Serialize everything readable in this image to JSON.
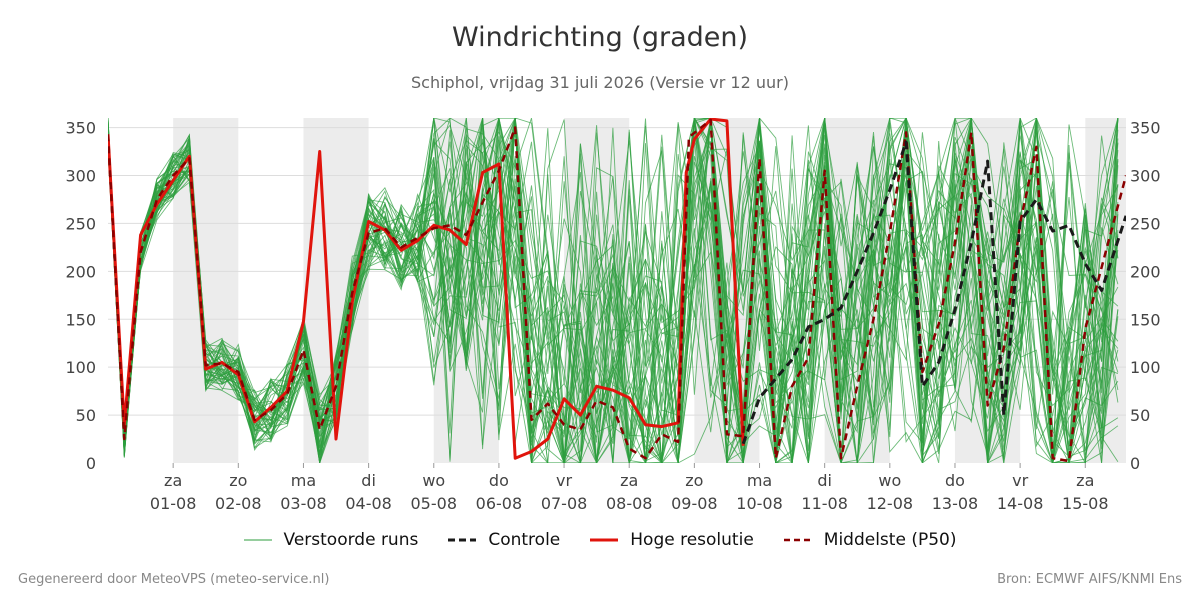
{
  "header": {
    "title": "Windrichting (graden)",
    "subtitle": "Schiphol, vrijdag 31 juli 2026 (Versie vr 12 uur)"
  },
  "footer": {
    "left": "Gegenereerd door MeteoVPS (meteo-service.nl)",
    "right": "Bron: ECMWF AIFS/KNMI Ens"
  },
  "colors": {
    "ensemble": "#2e9e3e",
    "control": "#1a1a1a",
    "high_res": "#e0140c",
    "median": "#8b0000",
    "weekend_shade": "#ececec",
    "grid": "#dddddd"
  },
  "chart_data": {
    "type": "line",
    "title": "Windrichting (graden)",
    "ylim": [
      0,
      360
    ],
    "yticks": [
      0,
      50,
      100,
      150,
      200,
      250,
      300,
      350
    ],
    "grid": true,
    "legend_position": "bottom",
    "x_range": [
      "2026-07-31",
      "2026-08-15 15:00"
    ],
    "x_ticks": [
      {
        "date": "2026-08-01",
        "day": "za",
        "label": "01-08"
      },
      {
        "date": "2026-08-02",
        "day": "zo",
        "label": "02-08"
      },
      {
        "date": "2026-08-03",
        "day": "ma",
        "label": "03-08"
      },
      {
        "date": "2026-08-04",
        "day": "di",
        "label": "04-08"
      },
      {
        "date": "2026-08-05",
        "day": "wo",
        "label": "05-08"
      },
      {
        "date": "2026-08-06",
        "day": "do",
        "label": "06-08"
      },
      {
        "date": "2026-08-07",
        "day": "vr",
        "label": "07-08"
      },
      {
        "date": "2026-08-08",
        "day": "za",
        "label": "08-08"
      },
      {
        "date": "2026-08-09",
        "day": "zo",
        "label": "09-08"
      },
      {
        "date": "2026-08-10",
        "day": "ma",
        "label": "10-08"
      },
      {
        "date": "2026-08-11",
        "day": "di",
        "label": "11-08"
      },
      {
        "date": "2026-08-12",
        "day": "wo",
        "label": "12-08"
      },
      {
        "date": "2026-08-13",
        "day": "do",
        "label": "13-08"
      },
      {
        "date": "2026-08-14",
        "day": "vr",
        "label": "14-08"
      },
      {
        "date": "2026-08-15",
        "day": "za",
        "label": "15-08"
      }
    ],
    "shaded_periods": [
      [
        "2026-08-01",
        "2026-08-02"
      ],
      [
        "2026-08-03",
        "2026-08-04"
      ],
      [
        "2026-08-05",
        "2026-08-06"
      ],
      [
        "2026-08-07",
        "2026-08-08"
      ],
      [
        "2026-08-09",
        "2026-08-10"
      ],
      [
        "2026-08-11",
        "2026-08-12"
      ],
      [
        "2026-08-13",
        "2026-08-14"
      ],
      [
        "2026-08-15",
        "2026-08-15 15:00"
      ]
    ],
    "series": [
      {
        "name": "Hoge resolutie",
        "style": "solid",
        "points": [
          [
            "2026-07-31 00:00",
            343
          ],
          [
            "2026-07-31 06:00",
            40
          ],
          [
            "2026-07-31 12:00",
            238
          ],
          [
            "2026-07-31 18:00",
            270
          ],
          [
            "2026-08-01 00:00",
            295
          ],
          [
            "2026-08-01 06:00",
            320
          ],
          [
            "2026-08-01 12:00",
            98
          ],
          [
            "2026-08-01 18:00",
            105
          ],
          [
            "2026-08-02 00:00",
            92
          ],
          [
            "2026-08-02 06:00",
            43
          ],
          [
            "2026-08-02 12:00",
            58
          ],
          [
            "2026-08-02 18:00",
            75
          ],
          [
            "2026-08-03 00:00",
            148
          ],
          [
            "2026-08-03 06:00",
            325
          ],
          [
            "2026-08-03 12:00",
            25
          ],
          [
            "2026-08-03 18:00",
            168
          ],
          [
            "2026-08-04 00:00",
            252
          ],
          [
            "2026-08-04 06:00",
            243
          ],
          [
            "2026-08-04 12:00",
            222
          ],
          [
            "2026-08-04 18:00",
            232
          ],
          [
            "2026-08-05 00:00",
            248
          ],
          [
            "2026-08-05 06:00",
            243
          ],
          [
            "2026-08-05 12:00",
            228
          ],
          [
            "2026-08-05 18:00",
            303
          ],
          [
            "2026-08-06 00:00",
            312
          ],
          [
            "2026-08-06 06:00",
            5
          ],
          [
            "2026-08-06 12:00",
            12
          ],
          [
            "2026-08-06 18:00",
            25
          ],
          [
            "2026-08-07 00:00",
            67
          ],
          [
            "2026-08-07 06:00",
            50
          ],
          [
            "2026-08-07 12:00",
            80
          ],
          [
            "2026-08-07 18:00",
            76
          ],
          [
            "2026-08-08 00:00",
            68
          ],
          [
            "2026-08-08 06:00",
            40
          ],
          [
            "2026-08-08 12:00",
            38
          ],
          [
            "2026-08-08 18:00",
            42
          ],
          [
            "2026-08-08 21:00",
            303
          ],
          [
            "2026-08-09 00:00",
            338
          ],
          [
            "2026-08-09 06:00",
            359
          ],
          [
            "2026-08-09 12:00",
            357
          ],
          [
            "2026-08-09 18:00",
            18
          ]
        ]
      },
      {
        "name": "Middelste (P50)",
        "style": "dashed",
        "points": [
          [
            "2026-07-31 00:00",
            343
          ],
          [
            "2026-07-31 06:00",
            25
          ],
          [
            "2026-07-31 12:00",
            220
          ],
          [
            "2026-07-31 18:00",
            275
          ],
          [
            "2026-08-01 00:00",
            300
          ],
          [
            "2026-08-01 06:00",
            318
          ],
          [
            "2026-08-01 12:00",
            102
          ],
          [
            "2026-08-01 18:00",
            104
          ],
          [
            "2026-08-02 00:00",
            95
          ],
          [
            "2026-08-02 06:00",
            45
          ],
          [
            "2026-08-02 12:00",
            55
          ],
          [
            "2026-08-02 18:00",
            72
          ],
          [
            "2026-08-03 00:00",
            118
          ],
          [
            "2026-08-03 06:00",
            35
          ],
          [
            "2026-08-03 12:00",
            80
          ],
          [
            "2026-08-03 18:00",
            178
          ],
          [
            "2026-08-04 00:00",
            240
          ],
          [
            "2026-08-04 06:00",
            245
          ],
          [
            "2026-08-04 12:00",
            225
          ],
          [
            "2026-08-04 18:00",
            235
          ],
          [
            "2026-08-05 00:00",
            245
          ],
          [
            "2026-08-05 06:00",
            248
          ],
          [
            "2026-08-05 12:00",
            238
          ],
          [
            "2026-08-05 18:00",
            272
          ],
          [
            "2026-08-06 00:00",
            305
          ],
          [
            "2026-08-06 06:00",
            350
          ],
          [
            "2026-08-06 12:00",
            45
          ],
          [
            "2026-08-06 18:00",
            62
          ],
          [
            "2026-08-07 00:00",
            40
          ],
          [
            "2026-08-07 06:00",
            35
          ],
          [
            "2026-08-07 12:00",
            65
          ],
          [
            "2026-08-07 18:00",
            58
          ],
          [
            "2026-08-08 00:00",
            15
          ],
          [
            "2026-08-08 06:00",
            5
          ],
          [
            "2026-08-08 12:00",
            30
          ],
          [
            "2026-08-08 18:00",
            22
          ],
          [
            "2026-08-08 22:00",
            340
          ],
          [
            "2026-08-09 06:00",
            358
          ],
          [
            "2026-08-09 12:00",
            30
          ],
          [
            "2026-08-09 18:00",
            28
          ],
          [
            "2026-08-10 00:00",
            318
          ],
          [
            "2026-08-10 06:00",
            5
          ],
          [
            "2026-08-10 12:00",
            80
          ],
          [
            "2026-08-10 18:00",
            110
          ],
          [
            "2026-08-11 00:00",
            305
          ],
          [
            "2026-08-11 06:00",
            5
          ],
          [
            "2026-08-11 12:00",
            80
          ],
          [
            "2026-08-11 18:00",
            150
          ],
          [
            "2026-08-12 00:00",
            240
          ],
          [
            "2026-08-12 06:00",
            345
          ],
          [
            "2026-08-12 12:00",
            95
          ],
          [
            "2026-08-12 18:00",
            145
          ],
          [
            "2026-08-13 00:00",
            230
          ],
          [
            "2026-08-13 06:00",
            345
          ],
          [
            "2026-08-13 12:00",
            60
          ],
          [
            "2026-08-13 18:00",
            120
          ],
          [
            "2026-08-14 00:00",
            250
          ],
          [
            "2026-08-14 06:00",
            330
          ],
          [
            "2026-08-14 12:00",
            5
          ],
          [
            "2026-08-14 18:00",
            2
          ],
          [
            "2026-08-15 00:00",
            140
          ],
          [
            "2026-08-15 15:00",
            300
          ]
        ]
      },
      {
        "name": "Controle",
        "style": "dashed",
        "points": [
          [
            "2026-08-09 18:00",
            20
          ],
          [
            "2026-08-10 00:00",
            68
          ],
          [
            "2026-08-10 06:00",
            88
          ],
          [
            "2026-08-10 12:00",
            108
          ],
          [
            "2026-08-10 18:00",
            142
          ],
          [
            "2026-08-11 00:00",
            150
          ],
          [
            "2026-08-11 06:00",
            162
          ],
          [
            "2026-08-11 12:00",
            200
          ],
          [
            "2026-08-11 18:00",
            240
          ],
          [
            "2026-08-12 00:00",
            285
          ],
          [
            "2026-08-12 06:00",
            335
          ],
          [
            "2026-08-12 12:00",
            80
          ],
          [
            "2026-08-12 18:00",
            105
          ],
          [
            "2026-08-13 00:00",
            160
          ],
          [
            "2026-08-13 06:00",
            230
          ],
          [
            "2026-08-13 12:00",
            315
          ],
          [
            "2026-08-13 18:00",
            50
          ],
          [
            "2026-08-14 00:00",
            252
          ],
          [
            "2026-08-14 06:00",
            275
          ],
          [
            "2026-08-14 12:00",
            242
          ],
          [
            "2026-08-14 18:00",
            248
          ],
          [
            "2026-08-15 00:00",
            208
          ],
          [
            "2026-08-15 06:00",
            180
          ],
          [
            "2026-08-15 15:00",
            258
          ]
        ]
      }
    ],
    "ensemble": {
      "name": "Verstoorde runs",
      "description_only": false
    }
  },
  "legend": {
    "items": [
      {
        "label": "Verstoorde runs"
      },
      {
        "label": "Controle"
      },
      {
        "label": "Hoge resolutie"
      },
      {
        "label": "Middelste (P50)"
      }
    ]
  }
}
